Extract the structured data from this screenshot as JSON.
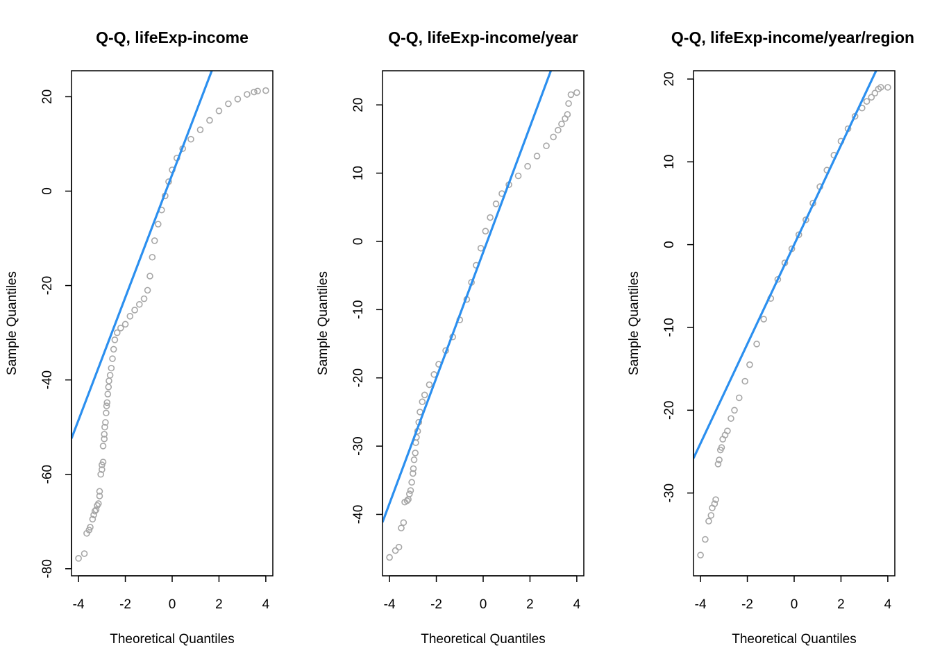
{
  "style": {
    "point_color": "#a6a6a6",
    "line_color": "#2b8fef",
    "frame_color": "#000000",
    "background": "#ffffff"
  },
  "chart_data": [
    {
      "type": "scatter",
      "subtype": "qq-plot",
      "title": "Q-Q, lifeExp-income",
      "xlabel": "Theoretical Quantiles",
      "ylabel": "Sample Quantiles",
      "xlim": [
        -4.3,
        4.3
      ],
      "ylim": [
        -81.5,
        25.5
      ],
      "xticks": [
        -4,
        -2,
        0,
        2,
        4
      ],
      "yticks": [
        -80,
        -60,
        -40,
        -20,
        0,
        20
      ],
      "grid": false,
      "reference_line": {
        "slope": 13.0,
        "intercept": 3.5
      },
      "points": [
        [
          -4.0,
          -77.8
        ],
        [
          -3.75,
          -76.8
        ],
        [
          -3.65,
          -72.5
        ],
        [
          -3.55,
          -71.8
        ],
        [
          -3.5,
          -71.2
        ],
        [
          -3.4,
          -69.5
        ],
        [
          -3.35,
          -68.6
        ],
        [
          -3.3,
          -67.8
        ],
        [
          -3.25,
          -67.5
        ],
        [
          -3.2,
          -66.6
        ],
        [
          -3.15,
          -66.2
        ],
        [
          -3.1,
          -64.6
        ],
        [
          -3.1,
          -63.6
        ],
        [
          -3.05,
          -60.0
        ],
        [
          -3.0,
          -59.0
        ],
        [
          -3.0,
          -58.0
        ],
        [
          -2.95,
          -57.4
        ],
        [
          -2.95,
          -54.0
        ],
        [
          -2.9,
          -52.5
        ],
        [
          -2.9,
          -51.5
        ],
        [
          -2.88,
          -50.0
        ],
        [
          -2.85,
          -49.0
        ],
        [
          -2.82,
          -47.0
        ],
        [
          -2.8,
          -45.5
        ],
        [
          -2.78,
          -44.8
        ],
        [
          -2.75,
          -43.0
        ],
        [
          -2.72,
          -41.5
        ],
        [
          -2.7,
          -40.2
        ],
        [
          -2.65,
          -39.0
        ],
        [
          -2.6,
          -37.5
        ],
        [
          -2.55,
          -35.5
        ],
        [
          -2.5,
          -33.5
        ],
        [
          -2.45,
          -31.5
        ],
        [
          -2.35,
          -30.0
        ],
        [
          -2.2,
          -29.0
        ],
        [
          -2.0,
          -28.2
        ],
        [
          -1.8,
          -26.5
        ],
        [
          -1.6,
          -25.2
        ],
        [
          -1.4,
          -24.0
        ],
        [
          -1.2,
          -22.8
        ],
        [
          -1.05,
          -21.0
        ],
        [
          -0.95,
          -18.0
        ],
        [
          -0.85,
          -14.0
        ],
        [
          -0.75,
          -10.5
        ],
        [
          -0.6,
          -7.0
        ],
        [
          -0.45,
          -4.0
        ],
        [
          -0.3,
          -1.0
        ],
        [
          -0.15,
          2.0
        ],
        [
          0.0,
          4.5
        ],
        [
          0.2,
          7.0
        ],
        [
          0.45,
          9.0
        ],
        [
          0.8,
          11.0
        ],
        [
          1.2,
          13.0
        ],
        [
          1.6,
          15.0
        ],
        [
          2.0,
          17.0
        ],
        [
          2.4,
          18.5
        ],
        [
          2.8,
          19.5
        ],
        [
          3.2,
          20.5
        ],
        [
          3.5,
          21.0
        ],
        [
          3.65,
          21.2
        ],
        [
          4.0,
          21.3
        ]
      ]
    },
    {
      "type": "scatter",
      "subtype": "qq-plot",
      "title": "Q-Q, lifeExp-income/year",
      "xlabel": "Theoretical Quantiles",
      "ylabel": "Sample Quantiles",
      "xlim": [
        -4.3,
        4.3
      ],
      "ylim": [
        -49.0,
        25.0
      ],
      "xticks": [
        -4,
        -2,
        0,
        2,
        4
      ],
      "yticks": [
        -40,
        -30,
        -20,
        -10,
        0,
        10,
        20
      ],
      "grid": false,
      "reference_line": {
        "slope": 9.2,
        "intercept": -1.6
      },
      "points": [
        [
          -4.0,
          -46.3
        ],
        [
          -3.75,
          -45.3
        ],
        [
          -3.6,
          -44.8
        ],
        [
          -3.5,
          -42.0
        ],
        [
          -3.4,
          -41.2
        ],
        [
          -3.35,
          -38.2
        ],
        [
          -3.25,
          -38.0
        ],
        [
          -3.2,
          -37.8
        ],
        [
          -3.15,
          -37.0
        ],
        [
          -3.1,
          -36.5
        ],
        [
          -3.05,
          -35.3
        ],
        [
          -3.0,
          -34.0
        ],
        [
          -2.98,
          -33.3
        ],
        [
          -2.95,
          -32.0
        ],
        [
          -2.9,
          -31.0
        ],
        [
          -2.88,
          -29.5
        ],
        [
          -2.85,
          -28.7
        ],
        [
          -2.8,
          -27.8
        ],
        [
          -2.75,
          -26.5
        ],
        [
          -2.7,
          -25.0
        ],
        [
          -2.6,
          -23.5
        ],
        [
          -2.5,
          -22.5
        ],
        [
          -2.3,
          -21.0
        ],
        [
          -2.1,
          -19.5
        ],
        [
          -1.9,
          -18.0
        ],
        [
          -1.6,
          -16.0
        ],
        [
          -1.3,
          -14.0
        ],
        [
          -1.0,
          -11.5
        ],
        [
          -0.7,
          -8.5
        ],
        [
          -0.5,
          -6.0
        ],
        [
          -0.3,
          -3.5
        ],
        [
          -0.1,
          -1.0
        ],
        [
          0.1,
          1.5
        ],
        [
          0.3,
          3.5
        ],
        [
          0.55,
          5.5
        ],
        [
          0.8,
          7.0
        ],
        [
          1.1,
          8.3
        ],
        [
          1.5,
          9.6
        ],
        [
          1.9,
          11.0
        ],
        [
          2.3,
          12.5
        ],
        [
          2.7,
          14.0
        ],
        [
          3.0,
          15.3
        ],
        [
          3.2,
          16.3
        ],
        [
          3.35,
          17.2
        ],
        [
          3.5,
          18.0
        ],
        [
          3.6,
          18.6
        ],
        [
          3.65,
          20.2
        ],
        [
          3.75,
          21.5
        ],
        [
          4.0,
          21.8
        ]
      ]
    },
    {
      "type": "scatter",
      "subtype": "qq-plot",
      "title": "Q-Q, lifeExp-income/year/region",
      "xlabel": "Theoretical Quantiles",
      "ylabel": "Sample Quantiles",
      "xlim": [
        -4.3,
        4.3
      ],
      "ylim": [
        -40.0,
        21.0
      ],
      "xticks": [
        -4,
        -2,
        0,
        2,
        4
      ],
      "yticks": [
        -30,
        -20,
        -10,
        0,
        10,
        20
      ],
      "grid": false,
      "reference_line": {
        "slope": 6.0,
        "intercept": 0.0
      },
      "points": [
        [
          -4.0,
          -37.5
        ],
        [
          -3.8,
          -35.6
        ],
        [
          -3.65,
          -33.4
        ],
        [
          -3.55,
          -32.7
        ],
        [
          -3.5,
          -31.8
        ],
        [
          -3.4,
          -31.3
        ],
        [
          -3.35,
          -30.8
        ],
        [
          -3.25,
          -26.5
        ],
        [
          -3.2,
          -26.0
        ],
        [
          -3.15,
          -24.8
        ],
        [
          -3.1,
          -24.5
        ],
        [
          -3.05,
          -23.5
        ],
        [
          -2.95,
          -23.0
        ],
        [
          -2.85,
          -22.5
        ],
        [
          -2.7,
          -21.0
        ],
        [
          -2.55,
          -20.0
        ],
        [
          -2.35,
          -18.5
        ],
        [
          -2.1,
          -16.5
        ],
        [
          -1.9,
          -14.5
        ],
        [
          -1.6,
          -12.0
        ],
        [
          -1.3,
          -9.0
        ],
        [
          -1.0,
          -6.5
        ],
        [
          -0.7,
          -4.2
        ],
        [
          -0.4,
          -2.2
        ],
        [
          -0.1,
          -0.5
        ],
        [
          0.2,
          1.2
        ],
        [
          0.5,
          3.0
        ],
        [
          0.8,
          5.0
        ],
        [
          1.1,
          7.0
        ],
        [
          1.4,
          9.0
        ],
        [
          1.7,
          10.8
        ],
        [
          2.0,
          12.5
        ],
        [
          2.3,
          14.0
        ],
        [
          2.6,
          15.5
        ],
        [
          2.9,
          16.5
        ],
        [
          3.1,
          17.3
        ],
        [
          3.3,
          17.8
        ],
        [
          3.45,
          18.3
        ],
        [
          3.6,
          18.8
        ],
        [
          3.7,
          19.0
        ],
        [
          4.0,
          19.0
        ]
      ]
    }
  ]
}
